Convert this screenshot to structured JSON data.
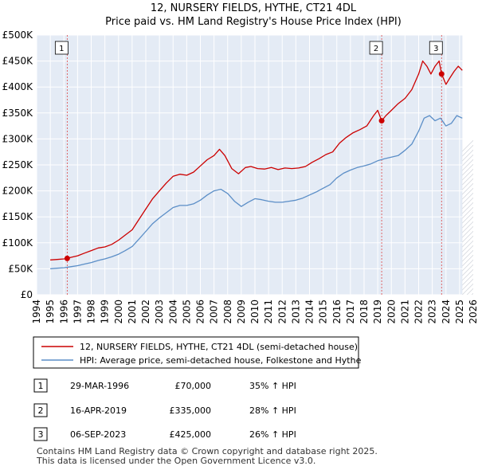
{
  "chart_data": {
    "type": "line",
    "title": "12, NURSERY FIELDS, HYTHE, CT21 4DL",
    "subtitle": "Price paid vs. HM Land Registry's House Price Index (HPI)",
    "ylim": [
      0,
      500000
    ],
    "xlim": [
      1994,
      2026
    ],
    "y_ticks": [
      {
        "value": 0,
        "label": "£0"
      },
      {
        "value": 50000,
        "label": "£50K"
      },
      {
        "value": 100000,
        "label": "£100K"
      },
      {
        "value": 150000,
        "label": "£150K"
      },
      {
        "value": 200000,
        "label": "£200K"
      },
      {
        "value": 250000,
        "label": "£250K"
      },
      {
        "value": 300000,
        "label": "£300K"
      },
      {
        "value": 350000,
        "label": "£350K"
      },
      {
        "value": 400000,
        "label": "£400K"
      },
      {
        "value": 450000,
        "label": "£450K"
      },
      {
        "value": 500000,
        "label": "£500K"
      }
    ],
    "x_ticks": [
      "1994",
      "1995",
      "1996",
      "1997",
      "1998",
      "1999",
      "2000",
      "2001",
      "2002",
      "2003",
      "2004",
      "2005",
      "2006",
      "2007",
      "2008",
      "2009",
      "2010",
      "2011",
      "2012",
      "2013",
      "2014",
      "2015",
      "2016",
      "2017",
      "2018",
      "2019",
      "2020",
      "2021",
      "2022",
      "2023",
      "2024",
      "2025",
      "2026"
    ],
    "series": [
      {
        "name": "12, NURSERY FIELDS, HYTHE, CT21 4DL (semi-detached house)",
        "color": "#cc0000",
        "x": [
          1995.0,
          1995.5,
          1996.0,
          1996.24,
          1996.5,
          1997.0,
          1997.5,
          1998.0,
          1998.5,
          1999.0,
          1999.5,
          2000.0,
          2000.5,
          2001.0,
          2001.5,
          2002.0,
          2002.5,
          2003.0,
          2003.5,
          2004.0,
          2004.5,
          2005.0,
          2005.5,
          2006.0,
          2006.5,
          2007.0,
          2007.4,
          2007.8,
          2008.3,
          2008.8,
          2009.3,
          2009.7,
          2010.2,
          2010.7,
          2011.2,
          2011.7,
          2012.2,
          2012.7,
          2013.2,
          2013.7,
          2014.2,
          2014.7,
          2015.2,
          2015.7,
          2016.2,
          2016.7,
          2017.2,
          2017.7,
          2018.2,
          2018.7,
          2019.0,
          2019.29,
          2019.6,
          2020.0,
          2020.5,
          2021.0,
          2021.5,
          2022.0,
          2022.3,
          2022.6,
          2022.9,
          2023.2,
          2023.5,
          2023.68,
          2024.0,
          2024.3,
          2024.6,
          2024.9,
          2025.2
        ],
        "values": [
          67000,
          68000,
          69000,
          70000,
          72000,
          75000,
          80000,
          85000,
          90000,
          92000,
          97000,
          105000,
          115000,
          125000,
          145000,
          165000,
          185000,
          200000,
          215000,
          228000,
          232000,
          230000,
          236000,
          248000,
          260000,
          268000,
          280000,
          268000,
          243000,
          233000,
          245000,
          247000,
          243000,
          242000,
          245000,
          241000,
          244000,
          243000,
          244000,
          247000,
          255000,
          262000,
          270000,
          275000,
          292000,
          303000,
          312000,
          318000,
          325000,
          345000,
          355000,
          335000,
          345000,
          355000,
          368000,
          378000,
          395000,
          425000,
          450000,
          440000,
          425000,
          440000,
          450000,
          425000,
          405000,
          418000,
          430000,
          440000,
          432000
        ]
      },
      {
        "name": "HPI: Average price, semi-detached house, Folkestone and Hythe",
        "color": "#5b8ec7",
        "x": [
          1995.0,
          1995.5,
          1996.0,
          1996.5,
          1997.0,
          1997.5,
          1998.0,
          1998.5,
          1999.0,
          1999.5,
          2000.0,
          2000.5,
          2001.0,
          2001.5,
          2002.0,
          2002.5,
          2003.0,
          2003.5,
          2004.0,
          2004.5,
          2005.0,
          2005.5,
          2006.0,
          2006.5,
          2007.0,
          2007.5,
          2008.0,
          2008.5,
          2009.0,
          2009.5,
          2010.0,
          2010.5,
          2011.0,
          2011.5,
          2012.0,
          2012.5,
          2013.0,
          2013.5,
          2014.0,
          2014.5,
          2015.0,
          2015.5,
          2016.0,
          2016.5,
          2017.0,
          2017.5,
          2018.0,
          2018.5,
          2019.0,
          2019.5,
          2020.0,
          2020.5,
          2021.0,
          2021.5,
          2022.0,
          2022.4,
          2022.8,
          2023.2,
          2023.6,
          2024.0,
          2024.4,
          2024.8,
          2025.2
        ],
        "values": [
          50000,
          51000,
          52000,
          54000,
          56000,
          59000,
          62000,
          66000,
          69000,
          73000,
          78000,
          85000,
          93000,
          107000,
          122000,
          137000,
          148000,
          158000,
          168000,
          172000,
          172000,
          175000,
          182000,
          192000,
          200000,
          203000,
          195000,
          180000,
          170000,
          178000,
          185000,
          183000,
          180000,
          178000,
          178000,
          180000,
          182000,
          186000,
          192000,
          198000,
          205000,
          212000,
          225000,
          234000,
          240000,
          245000,
          248000,
          252000,
          258000,
          262000,
          265000,
          268000,
          278000,
          290000,
          315000,
          340000,
          345000,
          335000,
          340000,
          325000,
          330000,
          345000,
          340000
        ]
      }
    ],
    "sales": [
      {
        "marker": "1",
        "x": 1996.24,
        "price": 70000
      },
      {
        "marker": "2",
        "x": 2019.29,
        "price": 335000
      },
      {
        "marker": "3",
        "x": 2023.68,
        "price": 425000
      }
    ]
  },
  "legend": {
    "items": [
      {
        "label": "12, NURSERY FIELDS, HYTHE, CT21 4DL (semi-detached house)",
        "color": "#cc0000"
      },
      {
        "label": "HPI: Average price, semi-detached house, Folkestone and Hythe",
        "color": "#5b8ec7"
      }
    ]
  },
  "transactions": [
    {
      "num": "1",
      "date": "29-MAR-1996",
      "price": "£70,000",
      "hpi": "35% ↑ HPI"
    },
    {
      "num": "2",
      "date": "16-APR-2019",
      "price": "£335,000",
      "hpi": "28% ↑ HPI"
    },
    {
      "num": "3",
      "date": "06-SEP-2023",
      "price": "£425,000",
      "hpi": "26% ↑ HPI"
    }
  ],
  "footer": {
    "line1": "Contains HM Land Registry data © Crown copyright and database right 2025.",
    "line2": "This data is licensed under the Open Government Licence v3.0."
  }
}
